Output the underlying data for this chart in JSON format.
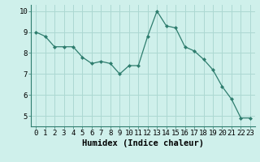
{
  "x": [
    0,
    1,
    2,
    3,
    4,
    5,
    6,
    7,
    8,
    9,
    10,
    11,
    12,
    13,
    14,
    15,
    16,
    17,
    18,
    19,
    20,
    21,
    22,
    23
  ],
  "y": [
    9.0,
    8.8,
    8.3,
    8.3,
    8.3,
    7.8,
    7.5,
    7.6,
    7.5,
    7.0,
    7.4,
    7.4,
    8.8,
    10.0,
    9.3,
    9.2,
    8.3,
    8.1,
    7.7,
    7.2,
    6.4,
    5.8,
    4.9,
    4.9
  ],
  "xlabel": "Humidex (Indice chaleur)",
  "ylim": [
    4.5,
    10.3
  ],
  "xlim": [
    -0.5,
    23.5
  ],
  "yticks": [
    5,
    6,
    7,
    8,
    9,
    10
  ],
  "xticks": [
    0,
    1,
    2,
    3,
    4,
    5,
    6,
    7,
    8,
    9,
    10,
    11,
    12,
    13,
    14,
    15,
    16,
    17,
    18,
    19,
    20,
    21,
    22,
    23
  ],
  "line_color": "#2e7d6e",
  "marker": "D",
  "marker_size": 2.0,
  "bg_color": "#cff0eb",
  "grid_color": "#acd8d2",
  "tick_label_fontsize": 6.5,
  "xlabel_fontsize": 7.5
}
